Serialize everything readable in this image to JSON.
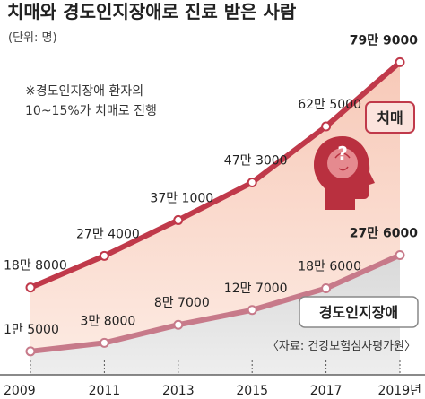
{
  "title": "치매와 경도인지장애로 진료 받은 사람",
  "unit_label": "(단위: 명)",
  "note_lines": [
    "※경도인지장애 환자의",
    "10~15%가 치매로 진행"
  ],
  "source": "〈자료: 건강보험심사평가원〉",
  "colors": {
    "dementia_line": "#c0394a",
    "mci_line": "#c77a8a",
    "dementia_fill": "#fbe0d3",
    "mci_fill": "#e6e6e6",
    "label_fill": "#fbe3dd",
    "title": "#222222"
  },
  "icon": "head-question-icon",
  "chart_data": {
    "type": "area",
    "x": [
      "2009",
      "2011",
      "2013",
      "2015",
      "2017",
      "2019년"
    ],
    "xlabel": "",
    "ylabel": "",
    "series": [
      {
        "name": "치매",
        "values": [
          188000,
          274000,
          371000,
          473000,
          625000,
          799000
        ],
        "labels": [
          "18만 8000",
          "27만 4000",
          "37만 1000",
          "47만 3000",
          "62만 5000",
          "79만 9000"
        ]
      },
      {
        "name": "경도인지장애",
        "values": [
          15000,
          38000,
          87000,
          127000,
          186000,
          276000
        ],
        "labels": [
          "1만 5000",
          "3만 8000",
          "8만 7000",
          "12만 7000",
          "18만 6000",
          "27만 6000"
        ]
      }
    ]
  }
}
